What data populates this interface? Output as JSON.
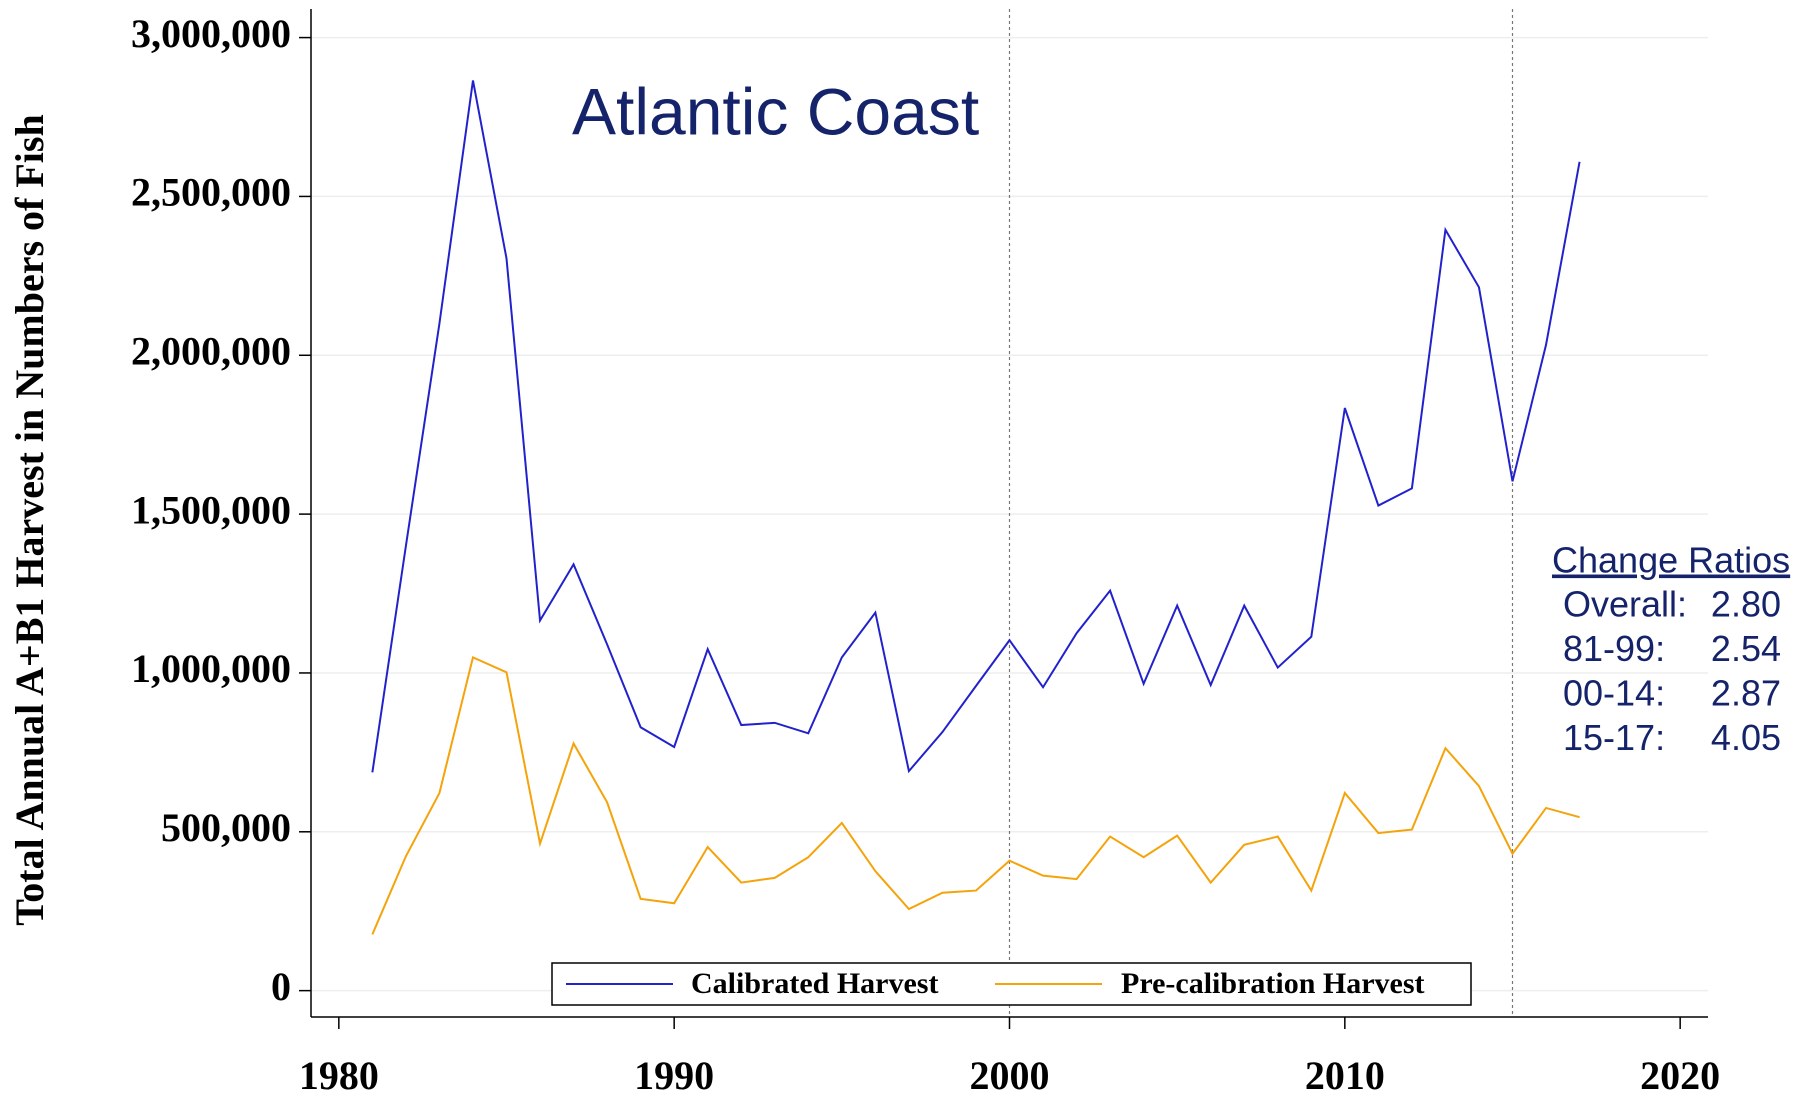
{
  "chart_data": {
    "type": "line",
    "title": "Atlantic Coast",
    "y_label": "Total Annual A+B1 Harvest in Numbers of Fish",
    "x": [
      1981,
      1982,
      1983,
      1984,
      1985,
      1986,
      1987,
      1988,
      1989,
      1990,
      1991,
      1992,
      1993,
      1994,
      1995,
      1996,
      1997,
      1998,
      1999,
      2000,
      2001,
      2002,
      2003,
      2004,
      2005,
      2006,
      2007,
      2008,
      2009,
      2010,
      2011,
      2012,
      2013,
      2014,
      2015,
      2016,
      2017
    ],
    "series": [
      {
        "name": "Calibrated Harvest",
        "color": "#2222cc",
        "values": [
          687000,
          1400000,
          2100000,
          2865000,
          2305000,
          1165000,
          1342000,
          1090000,
          829000,
          767000,
          1075000,
          836000,
          843000,
          810000,
          1049000,
          1190000,
          691000,
          814000,
          959000,
          1103000,
          955000,
          1125000,
          1259000,
          966000,
          1212000,
          962000,
          1212000,
          1017000,
          1114000,
          1834000,
          1527000,
          1581000,
          2395000,
          2214000,
          1603000,
          2033000,
          2609000
        ]
      },
      {
        "name": "Pre-calibration Harvest",
        "color": "#f5a30a",
        "values": [
          177000,
          423000,
          622000,
          1049000,
          1002000,
          463000,
          778000,
          593000,
          289000,
          275000,
          452000,
          340000,
          355000,
          420000,
          528000,
          376000,
          257000,
          308000,
          315000,
          409000,
          362000,
          351000,
          485000,
          420000,
          488000,
          340000,
          459000,
          485000,
          315000,
          622000,
          496000,
          507000,
          763000,
          644000,
          431000,
          575000,
          546000
        ]
      }
    ],
    "xlim": [
      1979.17,
      2020.83
    ],
    "ylim": [
      -83000,
      3090000
    ],
    "xticks": [
      1980,
      1990,
      2000,
      2010,
      2020
    ],
    "yticks": [
      0,
      {
        "value": 500000,
        "label": "500,000"
      },
      {
        "value": 1000000,
        "label": "1,000,000"
      },
      {
        "value": 1500000,
        "label": "1,500,000"
      },
      {
        "value": 2000000,
        "label": "2,000,000"
      },
      {
        "value": 2500000,
        "label": "2,500,000"
      },
      {
        "value": 3000000,
        "label": "3,000,000"
      }
    ],
    "grid": true,
    "reference_lines": [
      2000,
      2015
    ],
    "legend": "bottom",
    "change_ratios": {
      "title": "Change Ratios",
      "rows": [
        {
          "label": "Overall:",
          "value": "2.80"
        },
        {
          "label": "81-99:",
          "value": "2.54"
        },
        {
          "label": "00-14:",
          "value": "2.87"
        },
        {
          "label": "15-17:",
          "value": "4.05"
        }
      ]
    }
  }
}
